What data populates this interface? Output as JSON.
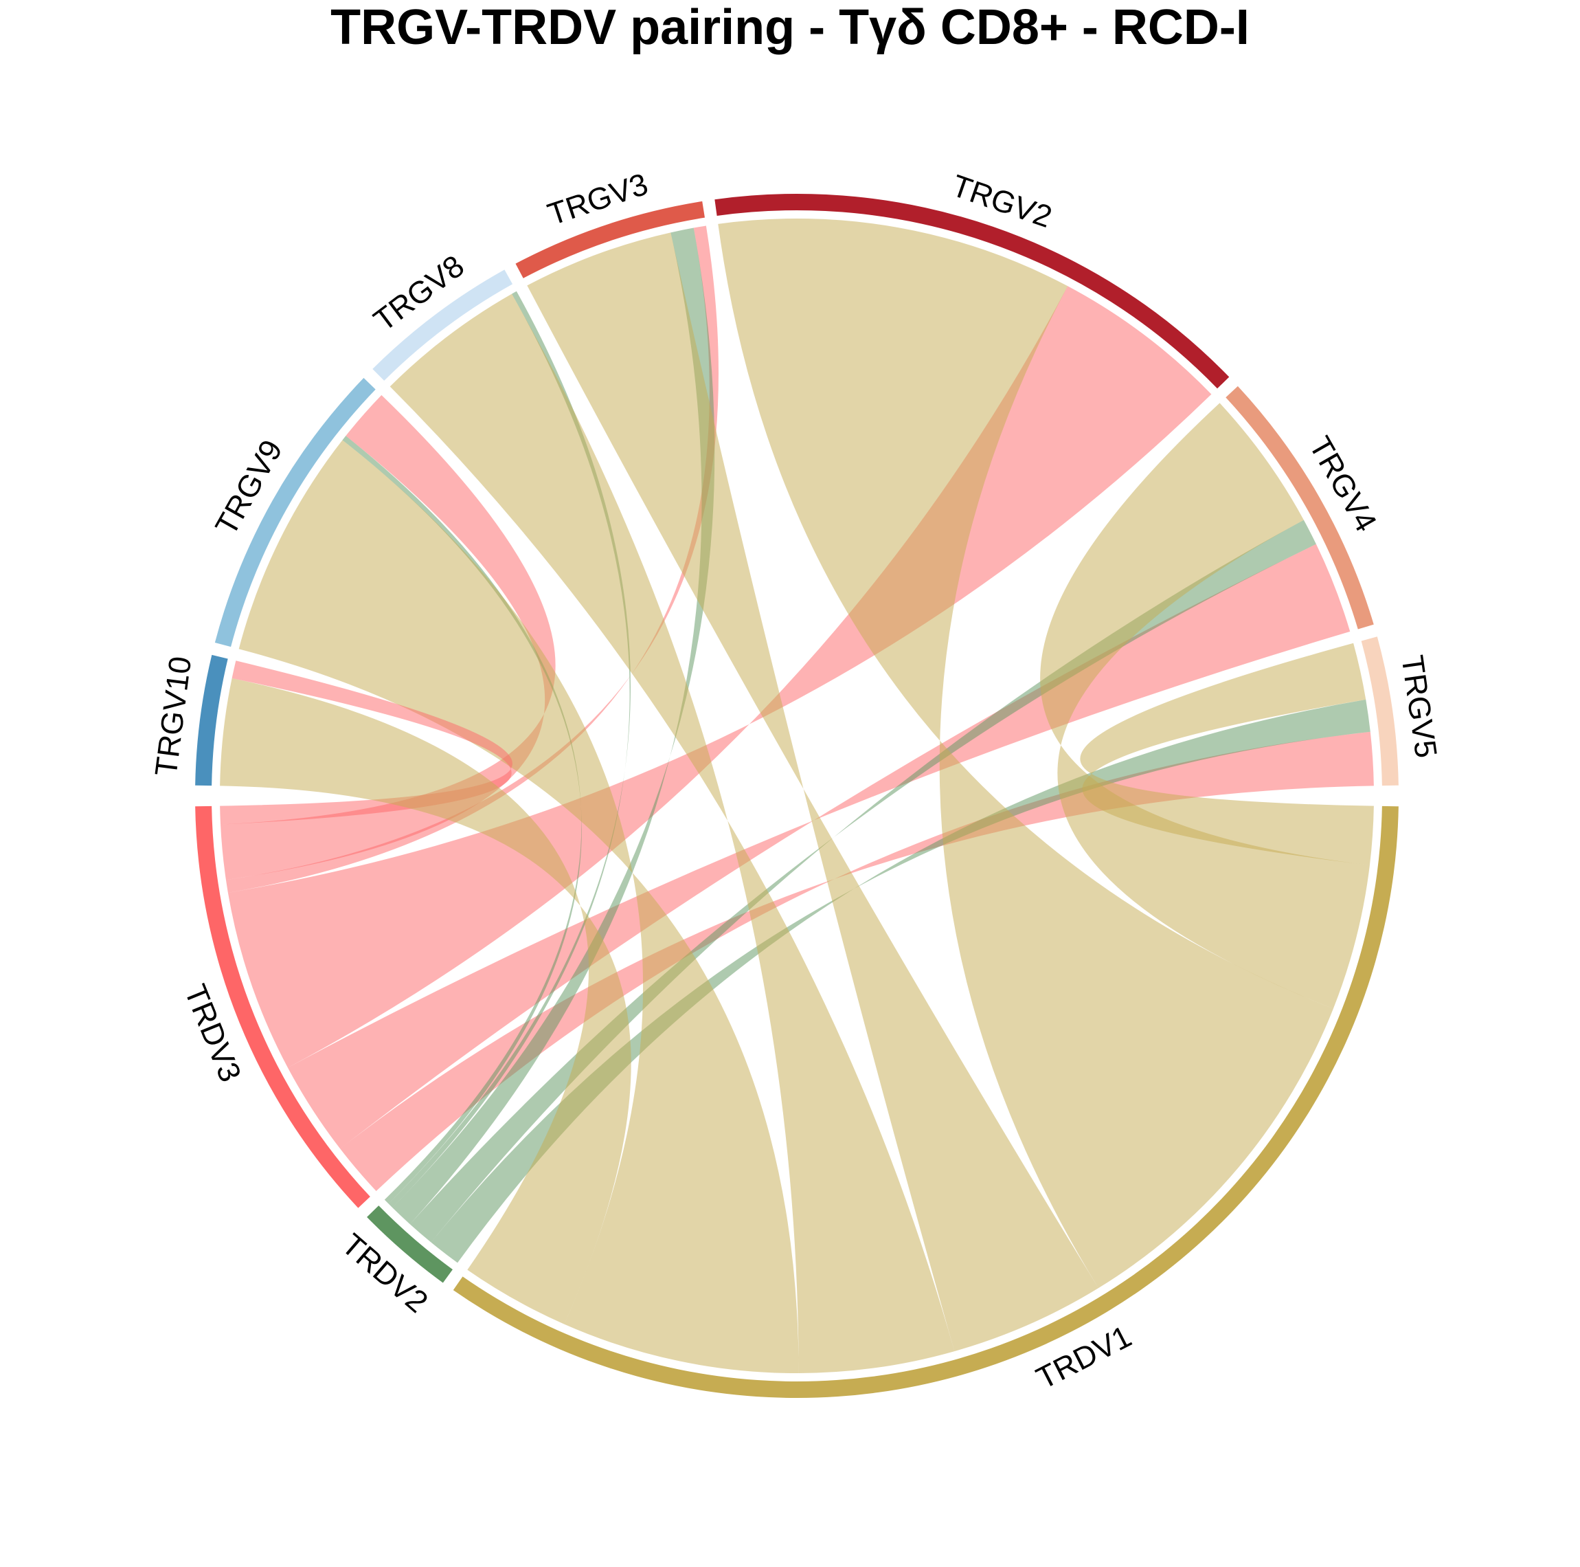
{
  "chart_data": {
    "type": "chord",
    "title": "TRGV-TRDV pairing - Tγδ CD8+ - RCD-I",
    "gamma_sectors": [
      {
        "name": "TRGV5",
        "color": "#F8D4BD"
      },
      {
        "name": "TRGV4",
        "color": "#E99B7D"
      },
      {
        "name": "TRGV2",
        "color": "#B11F2B"
      },
      {
        "name": "TRGV3",
        "color": "#DF5A4A"
      },
      {
        "name": "TRGV8",
        "color": "#CFE3F4"
      },
      {
        "name": "TRGV9",
        "color": "#8FC2DD"
      },
      {
        "name": "TRGV10",
        "color": "#4A90BD"
      }
    ],
    "delta_sectors": [
      {
        "name": "TRDV1",
        "color": "#C6AC52"
      },
      {
        "name": "TRDV2",
        "color": "#5E9560"
      },
      {
        "name": "TRDV3",
        "color": "#FE6667"
      }
    ],
    "links": [
      {
        "from": "TRGV5",
        "to": "TRDV3",
        "value": 3.0
      },
      {
        "from": "TRGV5",
        "to": "TRDV2",
        "value": 1.8
      },
      {
        "from": "TRGV5",
        "to": "TRDV1",
        "value": 3.2
      },
      {
        "from": "TRGV4",
        "to": "TRDV3",
        "value": 5.2
      },
      {
        "from": "TRGV4",
        "to": "TRDV2",
        "value": 1.5
      },
      {
        "from": "TRGV4",
        "to": "TRDV1",
        "value": 8.0
      },
      {
        "from": "TRGV2",
        "to": "TRDV3",
        "value": 10.0
      },
      {
        "from": "TRGV2",
        "to": "TRDV1",
        "value": 20.0
      },
      {
        "from": "TRGV3",
        "to": "TRDV3",
        "value": 0.7
      },
      {
        "from": "TRGV3",
        "to": "TRDV2",
        "value": 1.3
      },
      {
        "from": "TRGV3",
        "to": "TRDV1",
        "value": 8.5
      },
      {
        "from": "TRGV8",
        "to": "TRDV2",
        "value": 0.3
      },
      {
        "from": "TRGV8",
        "to": "TRDV1",
        "value": 8.5
      },
      {
        "from": "TRGV9",
        "to": "TRDV3",
        "value": 3.0
      },
      {
        "from": "TRGV9",
        "to": "TRDV2",
        "value": 0.3
      },
      {
        "from": "TRGV9",
        "to": "TRDV1",
        "value": 13.0
      },
      {
        "from": "TRGV10",
        "to": "TRDV3",
        "value": 1.0
      },
      {
        "from": "TRGV10",
        "to": "TRDV1",
        "value": 6.0
      }
    ],
    "link_colors": {
      "TRDV1": "#C6AC52",
      "TRDV2": "#5E9560",
      "TRDV3": "#FE6667"
    },
    "link_opacity": 0.5
  }
}
